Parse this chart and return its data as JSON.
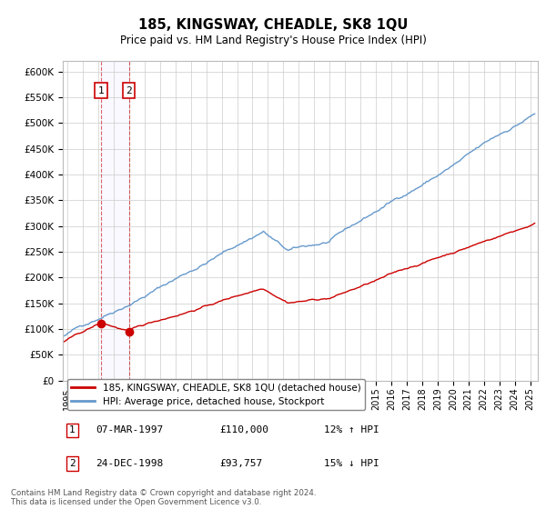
{
  "title": "185, KINGSWAY, CHEADLE, SK8 1QU",
  "subtitle": "Price paid vs. HM Land Registry's House Price Index (HPI)",
  "ylabel_ticks": [
    "£0",
    "£50K",
    "£100K",
    "£150K",
    "£200K",
    "£250K",
    "£300K",
    "£350K",
    "£400K",
    "£450K",
    "£500K",
    "£550K",
    "£600K"
  ],
  "ylim": [
    0,
    620000
  ],
  "ytick_vals": [
    0,
    50000,
    100000,
    150000,
    200000,
    250000,
    300000,
    350000,
    400000,
    450000,
    500000,
    550000,
    600000
  ],
  "xlim_start": 1994.7,
  "xlim_end": 2025.5,
  "hpi_color": "#6699cc",
  "price_color": "#cc0000",
  "sale1_t": 1997.18,
  "sale1_p": 110000,
  "sale2_t": 1998.98,
  "sale2_p": 93757,
  "legend_entries": [
    "185, KINGSWAY, CHEADLE, SK8 1QU (detached house)",
    "HPI: Average price, detached house, Stockport"
  ],
  "table_rows": [
    [
      "1",
      "07-MAR-1997",
      "£110,000",
      "12% ↑ HPI"
    ],
    [
      "2",
      "24-DEC-1998",
      "£93,757",
      "15% ↓ HPI"
    ]
  ],
  "footnote": "Contains HM Land Registry data © Crown copyright and database right 2024.\nThis data is licensed under the Open Government Licence v3.0.",
  "background_color": "#ffffff",
  "grid_color": "#cccccc"
}
